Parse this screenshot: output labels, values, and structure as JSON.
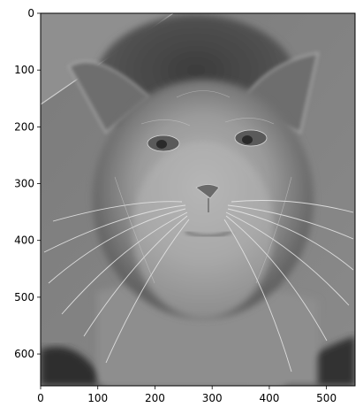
{
  "chart_data": {
    "type": "image",
    "title": "",
    "xlabel": "",
    "ylabel": "",
    "xlim": [
      0,
      550
    ],
    "ylim": [
      656,
      0
    ],
    "x_ticks": [
      0,
      100,
      200,
      300,
      400,
      500
    ],
    "y_ticks": [
      0,
      100,
      200,
      300,
      400,
      500,
      600
    ],
    "colormap": "gray",
    "image_content": "grayscale hybrid image blending a man's face with a cat's face and whiskers",
    "grid": false,
    "legend": "none"
  },
  "colors": {
    "axis": "#000000",
    "background": "#ffffff"
  }
}
